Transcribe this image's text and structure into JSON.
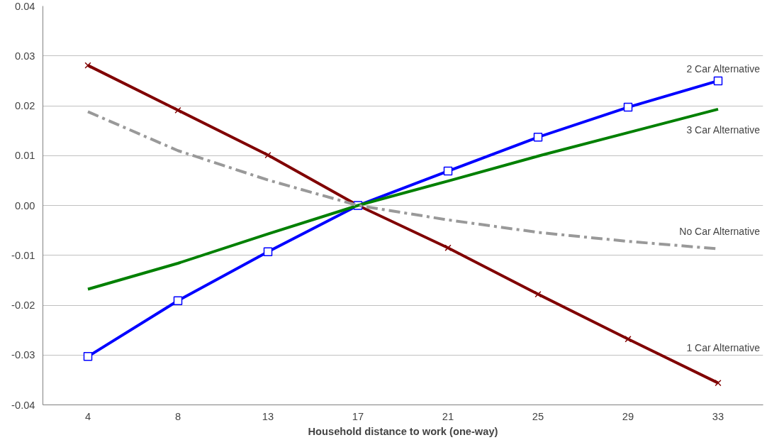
{
  "chart_data": {
    "type": "line",
    "xlabel": "Household distance to work (one-way)",
    "categories": [
      "4",
      "8",
      "13",
      "17",
      "21",
      "25",
      "29",
      "33"
    ],
    "ylim": [
      -0.04,
      0.04
    ],
    "yticks": [
      {
        "value": -0.04,
        "label": "-0.04"
      },
      {
        "value": -0.03,
        "label": "-0.03"
      },
      {
        "value": -0.02,
        "label": "-0.02"
      },
      {
        "value": -0.01,
        "label": "-0.01"
      },
      {
        "value": 0,
        "label": "0.00"
      },
      {
        "value": 0.01,
        "label": "0.01"
      },
      {
        "value": 0.02,
        "label": "0.02"
      },
      {
        "value": 0.03,
        "label": "0.03"
      },
      {
        "value": 0.04,
        "label": "0.04"
      }
    ],
    "grid": "y",
    "legend": false,
    "series": [
      {
        "name": "1 Car Alternative",
        "color": "#800000",
        "marker": "cross",
        "line_style": "solid",
        "values": [
          0.0281,
          0.0191,
          0.0101,
          0,
          -0.0085,
          -0.0178,
          -0.0268,
          -0.0356
        ]
      },
      {
        "name": "2 Car Alternative",
        "color": "#0000ff",
        "marker": "square",
        "line_style": "solid",
        "values": [
          -0.0303,
          -0.0191,
          -0.0093,
          0,
          0.0069,
          0.0137,
          0.0197,
          0.025
        ]
      },
      {
        "name": "3 Car Alternative",
        "color": "#008000",
        "marker": "none",
        "line_style": "solid",
        "values": [
          -0.0168,
          -0.0116,
          -0.0057,
          0,
          0.0049,
          0.0099,
          0.0146,
          0.0193
        ]
      },
      {
        "name": "No Car Alternative",
        "color": "#999999",
        "marker": "none",
        "line_style": "dashed",
        "values": [
          0.0188,
          0.011,
          0.0051,
          0,
          -0.0029,
          -0.0054,
          -0.0072,
          -0.0087
        ]
      }
    ]
  }
}
